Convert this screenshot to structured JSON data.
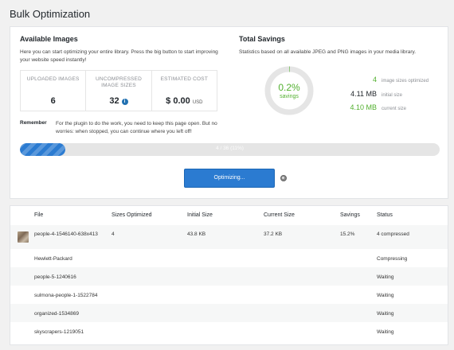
{
  "page": {
    "title": "Bulk Optimization"
  },
  "available": {
    "heading": "Available Images",
    "description": "Here you can start optimizing your entire library. Press the big button to start improving your website speed instantly!",
    "stats": [
      {
        "label": "UPLOADED IMAGES",
        "value": "6"
      },
      {
        "label": "UNCOMPRESSED IMAGE SIZES",
        "value": "32"
      },
      {
        "label": "ESTIMATED COST",
        "value": "$ 0.00",
        "unit": "USD"
      }
    ],
    "remember_label": "Remember",
    "remember_text": "For the plugin to do the work, you need to keep this page open. But no worries: when stopped, you can continue where you left off!"
  },
  "savings": {
    "heading": "Total Savings",
    "description": "Statistics based on all available JPEG and PNG images in your media library.",
    "percent": "0.2%",
    "percent_label": "savings",
    "percent_value": 0.2,
    "rows": [
      {
        "value": "4",
        "label": "image sizes optimized"
      },
      {
        "value": "4.11 MB",
        "label": "initial size"
      },
      {
        "value": "4.10 MB",
        "label": "current size"
      }
    ]
  },
  "progress": {
    "text": "4 / 36 (11%)",
    "fraction": 0.11
  },
  "optimize_button": {
    "label": "Optimizing..."
  },
  "table": {
    "columns": [
      "File",
      "Sizes Optimized",
      "Initial Size",
      "Current Size",
      "Savings",
      "Status"
    ],
    "rows": [
      {
        "file": "people-4-1546140-638x413",
        "sizes": "4",
        "initial": "43.8 KB",
        "current": "37.2 KB",
        "savings": "15.2%",
        "status": "4 compressed"
      },
      {
        "file": "Hewlett-Packard",
        "sizes": "",
        "initial": "",
        "current": "",
        "savings": "",
        "status": "Compressing"
      },
      {
        "file": "people-5-1240616",
        "sizes": "",
        "initial": "",
        "current": "",
        "savings": "",
        "status": "Waiting"
      },
      {
        "file": "sulmona-people-1-1522784",
        "sizes": "",
        "initial": "",
        "current": "",
        "savings": "",
        "status": "Waiting"
      },
      {
        "file": "organized-1534869",
        "sizes": "",
        "initial": "",
        "current": "",
        "savings": "",
        "status": "Waiting"
      },
      {
        "file": "skyscrapers-1219051",
        "sizes": "",
        "initial": "",
        "current": "",
        "savings": "",
        "status": "Waiting"
      }
    ]
  },
  "colors": {
    "accent": "#2b7bd1",
    "success": "#52b02f",
    "ring": "#e5e5e5"
  }
}
